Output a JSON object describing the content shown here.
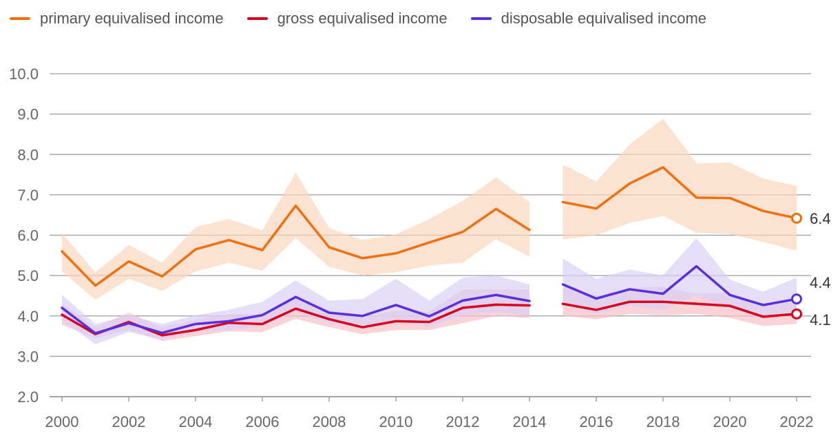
{
  "legend": {
    "items": [
      {
        "label": "primary equivalised income",
        "color": "#F07010"
      },
      {
        "label": "gross equivalised income",
        "color": "#D8001E"
      },
      {
        "label": "disposable equivalised income",
        "color": "#5A2EDC"
      }
    ]
  },
  "chart_data": {
    "type": "line",
    "title": "",
    "xlabel": "",
    "ylabel": "",
    "ylim": [
      2.0,
      10.0
    ],
    "xlim": [
      2000,
      2022
    ],
    "yticks": [
      "2.0",
      "3.0",
      "4.0",
      "5.0",
      "6.0",
      "7.0",
      "8.0",
      "9.0",
      "10.0"
    ],
    "xticks": [
      "2000",
      "2002",
      "2004",
      "2006",
      "2008",
      "2010",
      "2012",
      "2014",
      "2016",
      "2018",
      "2020",
      "2022"
    ],
    "grid": "horizontal",
    "legend_position": "top-left",
    "gap_between": [
      2014,
      2015
    ],
    "x": [
      2000,
      2001,
      2002,
      2003,
      2004,
      2005,
      2006,
      2007,
      2008,
      2009,
      2010,
      2011,
      2012,
      2013,
      2014,
      2015,
      2016,
      2017,
      2018,
      2019,
      2020,
      2021,
      2022
    ],
    "series": [
      {
        "name": "primary equivalised income",
        "color": "#F07010",
        "band_color": "#FBD6BC",
        "values": [
          5.6,
          4.75,
          5.35,
          4.98,
          5.65,
          5.88,
          5.63,
          6.73,
          5.7,
          5.43,
          5.55,
          5.82,
          6.08,
          6.65,
          6.13,
          6.82,
          6.66,
          7.28,
          7.68,
          6.93,
          6.92,
          6.6,
          6.42
        ],
        "lower": [
          5.1,
          4.4,
          4.92,
          4.62,
          5.1,
          5.32,
          5.12,
          5.93,
          5.22,
          5.0,
          5.08,
          5.25,
          5.32,
          5.9,
          5.47,
          5.9,
          6.0,
          6.3,
          6.48,
          6.06,
          6.03,
          5.83,
          5.62
        ],
        "upper": [
          6.05,
          5.08,
          5.76,
          5.32,
          6.2,
          6.4,
          6.12,
          7.55,
          6.18,
          5.88,
          6.02,
          6.4,
          6.85,
          7.43,
          6.82,
          7.75,
          7.33,
          8.25,
          8.88,
          7.78,
          7.8,
          7.4,
          7.22
        ],
        "end_label": "6.4"
      },
      {
        "name": "gross equivalised income",
        "color": "#D8001E",
        "band_color": "#F6C0C6",
        "values": [
          4.03,
          3.55,
          3.85,
          3.52,
          3.65,
          3.83,
          3.8,
          4.18,
          3.92,
          3.72,
          3.87,
          3.85,
          4.2,
          4.28,
          4.26,
          4.3,
          4.15,
          4.35,
          4.35,
          4.3,
          4.25,
          3.98,
          4.05
        ],
        "lower": [
          3.78,
          3.45,
          3.65,
          3.38,
          3.5,
          3.62,
          3.6,
          3.93,
          3.72,
          3.55,
          3.65,
          3.65,
          3.82,
          4.0,
          3.95,
          4.0,
          3.92,
          4.05,
          4.02,
          4.05,
          3.95,
          3.75,
          3.8
        ],
        "upper": [
          4.3,
          3.72,
          4.08,
          3.72,
          3.9,
          4.05,
          4.05,
          4.48,
          4.15,
          3.95,
          4.15,
          4.1,
          4.65,
          4.65,
          4.65,
          4.72,
          4.5,
          4.7,
          4.72,
          4.55,
          4.58,
          4.25,
          4.35
        ],
        "end_label": "4.1"
      },
      {
        "name": "disposable equivalised income",
        "color": "#5A2EDC",
        "band_color": "#D9D0F5",
        "values": [
          4.2,
          3.57,
          3.82,
          3.58,
          3.8,
          3.87,
          4.02,
          4.47,
          4.08,
          4.0,
          4.27,
          3.99,
          4.38,
          4.52,
          4.37,
          4.78,
          4.43,
          4.66,
          4.55,
          5.23,
          4.52,
          4.27,
          4.42
        ],
        "lower": [
          3.9,
          3.3,
          3.6,
          3.42,
          3.6,
          3.65,
          3.75,
          4.1,
          3.82,
          3.72,
          3.92,
          3.72,
          4.02,
          4.1,
          4.0,
          4.3,
          4.05,
          4.25,
          4.15,
          4.5,
          4.18,
          3.95,
          4.05
        ],
        "upper": [
          4.52,
          3.8,
          4.02,
          3.8,
          4.02,
          4.15,
          4.35,
          4.88,
          4.38,
          4.42,
          4.92,
          4.38,
          4.95,
          5.0,
          4.78,
          5.42,
          4.92,
          5.15,
          5.0,
          5.93,
          4.9,
          4.6,
          4.95
        ],
        "end_label": "4.4"
      }
    ]
  }
}
